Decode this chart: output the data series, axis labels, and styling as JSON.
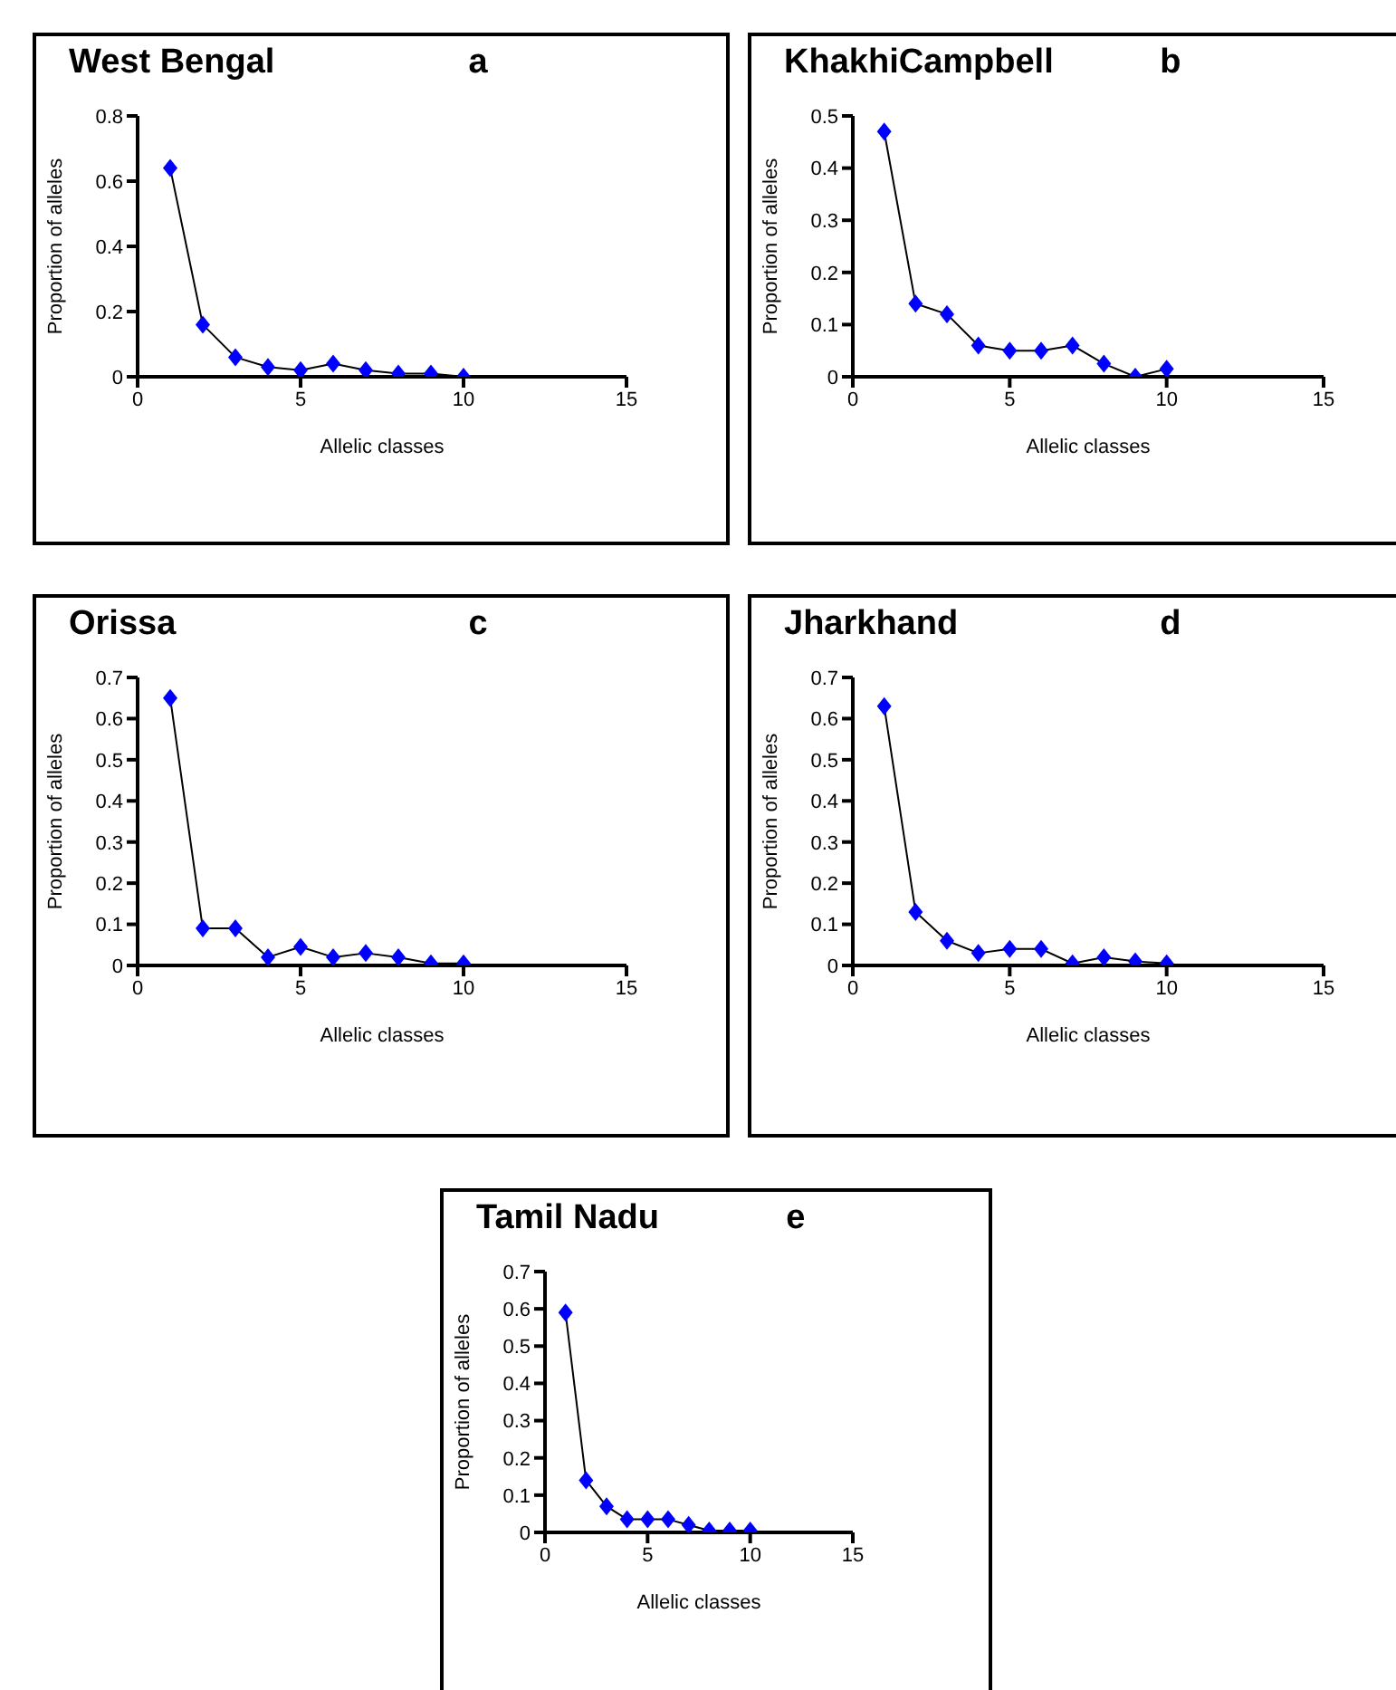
{
  "chart_data": [
    {
      "type": "line",
      "title": "West Bengal",
      "annotations": [
        "a"
      ],
      "xlabel": "Allelic classes",
      "ylabel": "Proportion of alleles",
      "x": [
        1,
        2,
        3,
        4,
        5,
        6,
        7,
        8,
        9,
        10
      ],
      "series": [
        {
          "color": "#0000ff",
          "values": [
            0.64,
            0.16,
            0.06,
            0.03,
            0.02,
            0.04,
            0.02,
            0.01,
            0.01,
            0.0
          ]
        }
      ],
      "xlim": [
        0,
        15
      ],
      "xticks": [
        0,
        5,
        10,
        15
      ],
      "ylim": [
        0,
        0.8
      ],
      "yticks": [
        0,
        0.2,
        0.4,
        0.6,
        0.8
      ],
      "marker": "diamond",
      "grid": false,
      "legend": false
    },
    {
      "type": "line",
      "title": "KhakhiCampbell",
      "annotations": [
        "b"
      ],
      "xlabel": "Allelic classes",
      "ylabel": "Proportion of alleles",
      "x": [
        1,
        2,
        3,
        4,
        5,
        6,
        7,
        8,
        9,
        10
      ],
      "series": [
        {
          "color": "#0000ff",
          "values": [
            0.47,
            0.14,
            0.12,
            0.06,
            0.05,
            0.05,
            0.06,
            0.025,
            0.0,
            0.015
          ]
        }
      ],
      "xlim": [
        0,
        15
      ],
      "xticks": [
        0,
        5,
        10,
        15
      ],
      "ylim": [
        0,
        0.5
      ],
      "yticks": [
        0,
        0.1,
        0.2,
        0.3,
        0.4,
        0.5
      ],
      "marker": "diamond",
      "grid": false,
      "legend": false
    },
    {
      "type": "line",
      "title": "Orissa",
      "annotations": [
        "c"
      ],
      "xlabel": "Allelic classes",
      "ylabel": "Proportion of alleles",
      "x": [
        1,
        2,
        3,
        4,
        5,
        6,
        7,
        8,
        9,
        10
      ],
      "series": [
        {
          "color": "#0000ff",
          "values": [
            0.65,
            0.09,
            0.09,
            0.02,
            0.045,
            0.02,
            0.03,
            0.02,
            0.005,
            0.005
          ]
        }
      ],
      "xlim": [
        0,
        15
      ],
      "xticks": [
        0,
        5,
        10,
        15
      ],
      "ylim": [
        0,
        0.7
      ],
      "yticks": [
        0,
        0.1,
        0.2,
        0.3,
        0.4,
        0.5,
        0.6,
        0.7
      ],
      "marker": "diamond",
      "grid": false,
      "legend": false
    },
    {
      "type": "line",
      "title": "Jharkhand",
      "annotations": [
        "d"
      ],
      "xlabel": "Allelic classes",
      "ylabel": "Proportion of alleles",
      "x": [
        1,
        2,
        3,
        4,
        5,
        6,
        7,
        8,
        9,
        10
      ],
      "series": [
        {
          "color": "#0000ff",
          "values": [
            0.63,
            0.13,
            0.06,
            0.03,
            0.04,
            0.04,
            0.005,
            0.02,
            0.01,
            0.005
          ]
        }
      ],
      "xlim": [
        0,
        15
      ],
      "xticks": [
        0,
        5,
        10,
        15
      ],
      "ylim": [
        0,
        0.7
      ],
      "yticks": [
        0,
        0.1,
        0.2,
        0.3,
        0.4,
        0.5,
        0.6,
        0.7
      ],
      "marker": "diamond",
      "grid": false,
      "legend": false
    },
    {
      "type": "line",
      "title": "Tamil Nadu",
      "annotations": [
        "e"
      ],
      "xlabel": "Allelic classes",
      "ylabel": "Proportion of alleles",
      "x": [
        1,
        2,
        3,
        4,
        5,
        6,
        7,
        8,
        9,
        10
      ],
      "series": [
        {
          "color": "#0000ff",
          "values": [
            0.59,
            0.14,
            0.07,
            0.035,
            0.035,
            0.035,
            0.02,
            0.005,
            0.005,
            0.005
          ]
        }
      ],
      "xlim": [
        0,
        15
      ],
      "xticks": [
        0,
        5,
        10,
        15
      ],
      "ylim": [
        0,
        0.7
      ],
      "yticks": [
        0,
        0.1,
        0.2,
        0.3,
        0.4,
        0.5,
        0.6,
        0.7
      ],
      "marker": "diamond",
      "grid": false,
      "legend": false
    }
  ]
}
